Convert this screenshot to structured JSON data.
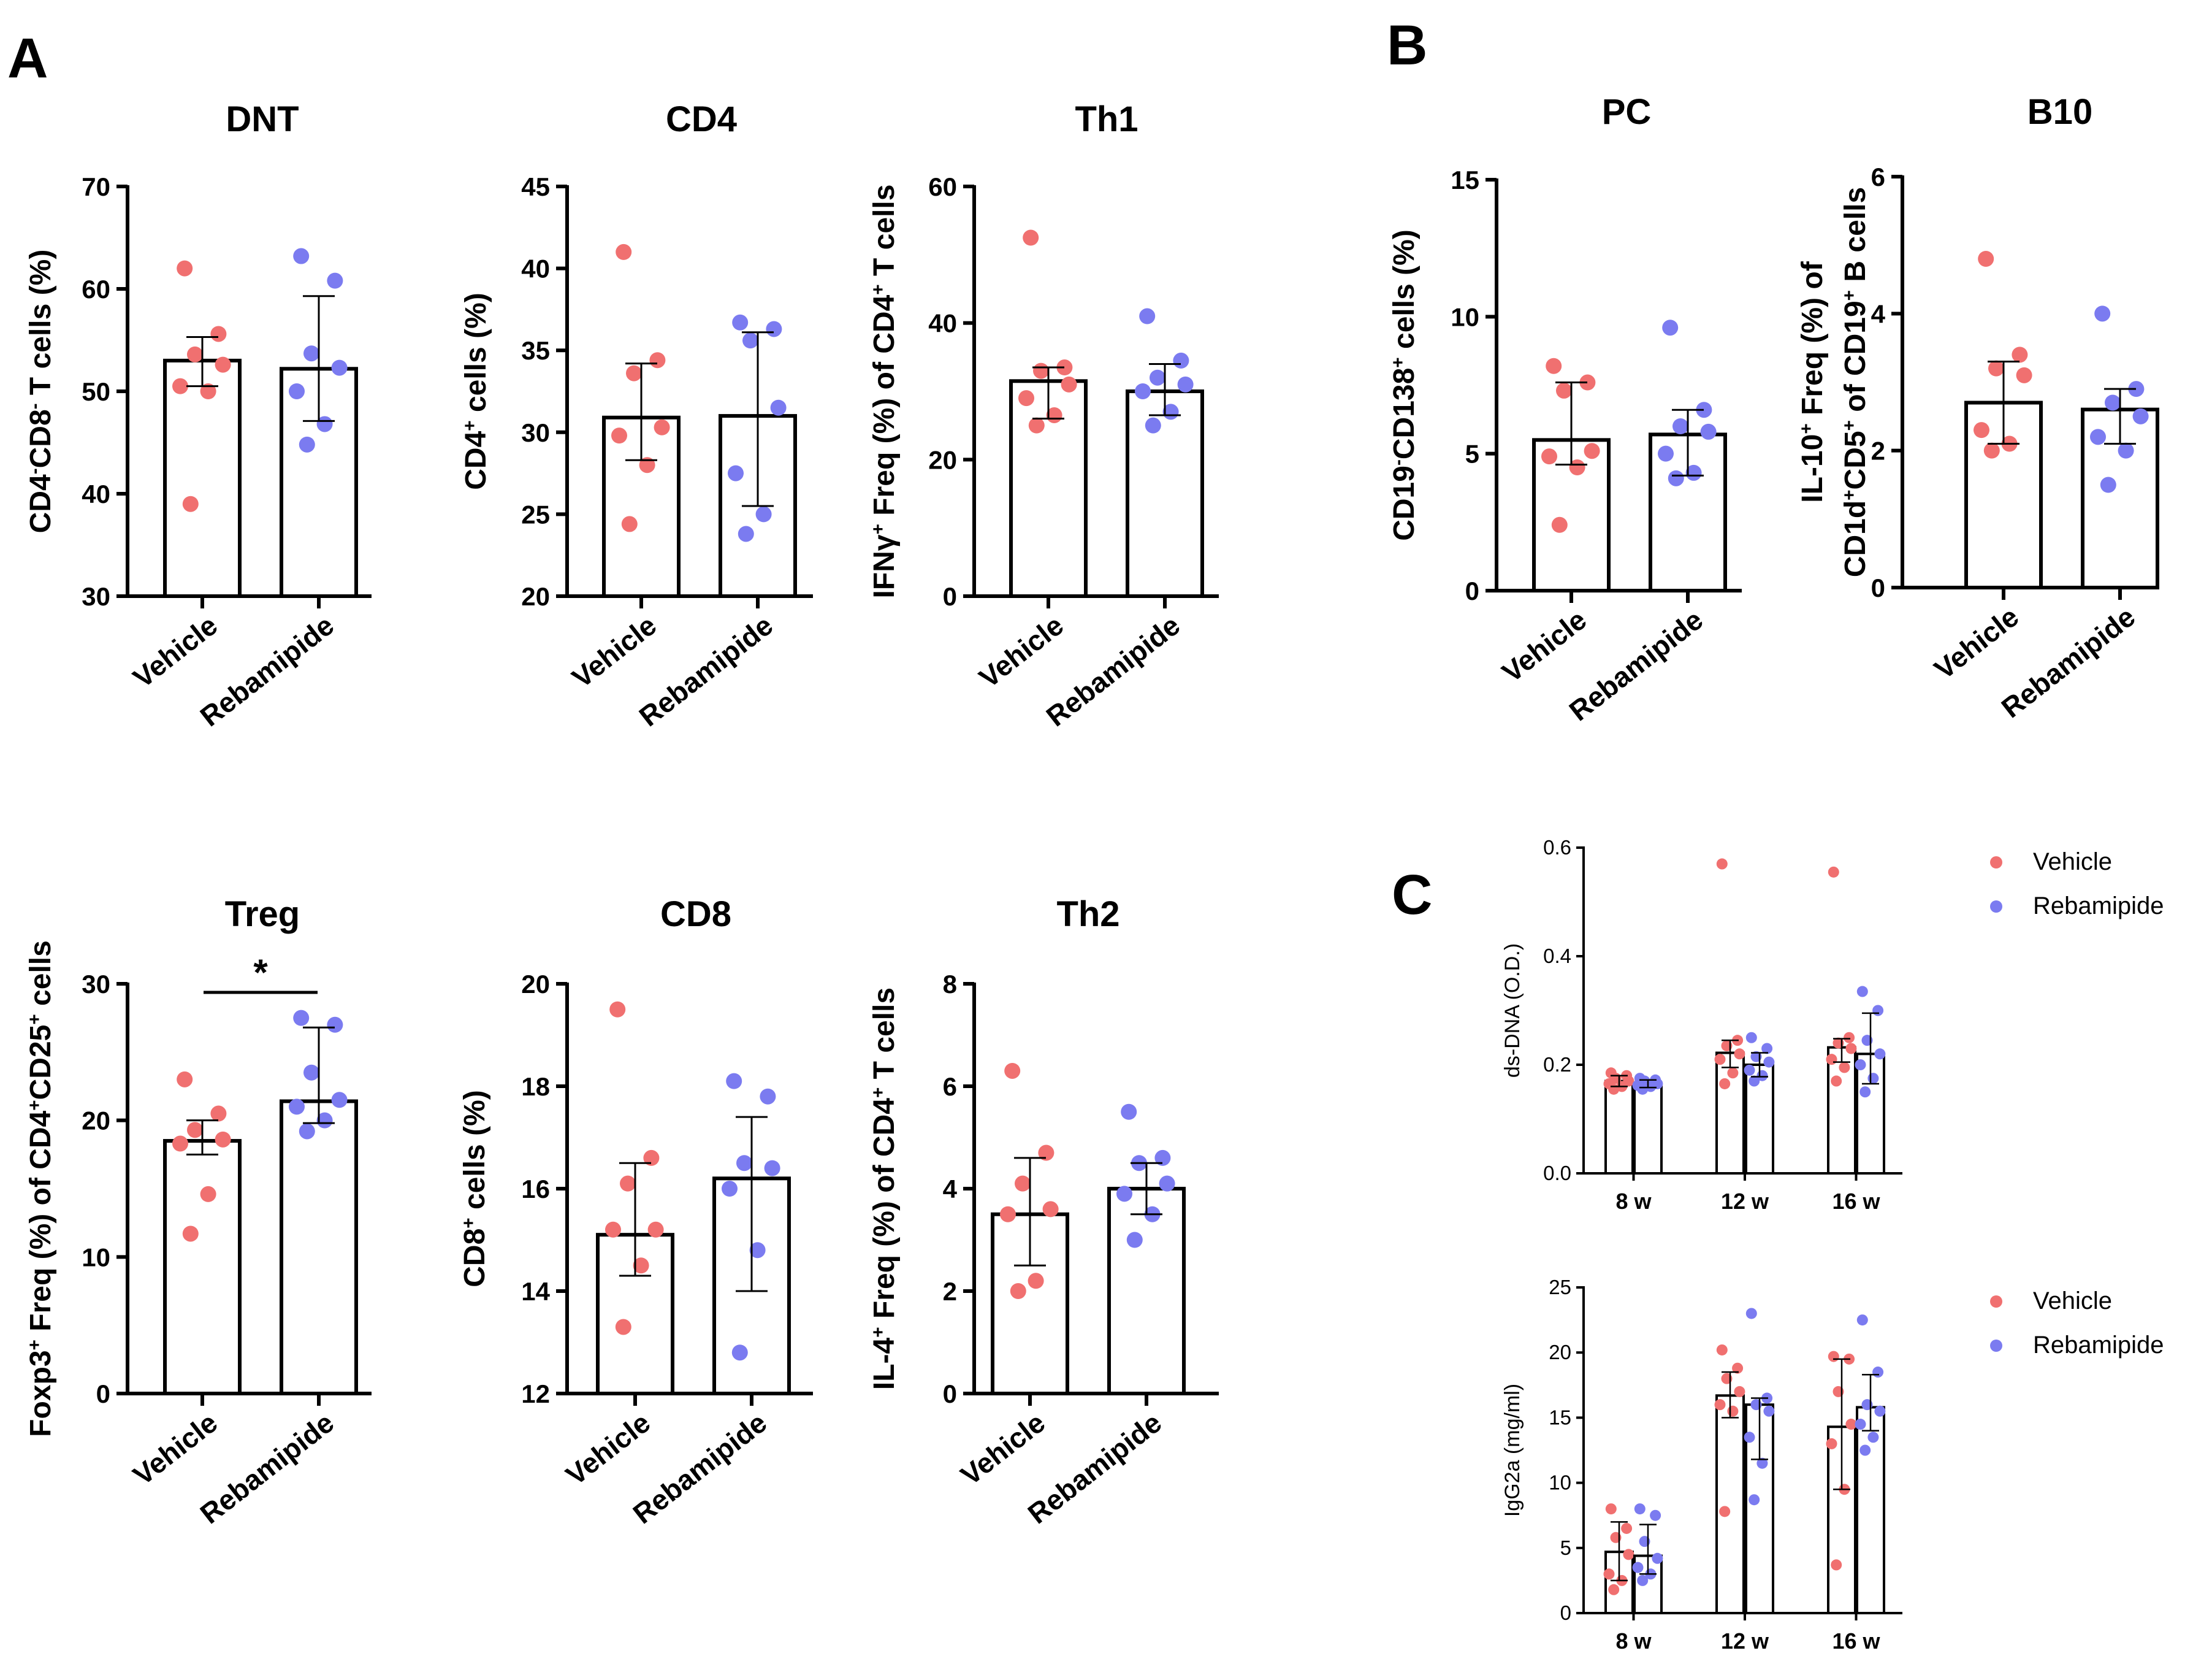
{
  "colors": {
    "vehicle": "#f07070",
    "rebamipide": "#7b7bf0",
    "axis": "#000000"
  },
  "panels": {
    "A": "A",
    "B": "B",
    "C": "C"
  },
  "chart_data": [
    {
      "id": "dnt",
      "panel": "A",
      "type": "bar",
      "title": "DNT",
      "ylabel": [
        {
          "t": "CD4"
        },
        {
          "t": "-",
          "s": "sup"
        },
        {
          "t": "CD8"
        },
        {
          "t": "-",
          "s": "sup"
        },
        {
          "t": " T cells (%)"
        }
      ],
      "ylim": [
        30,
        70
      ],
      "yticks": [
        30,
        40,
        50,
        60,
        70
      ],
      "categories": [
        "Vehicle",
        "Rebamipide"
      ],
      "series": [
        {
          "name": "Vehicle",
          "color": "vehicle",
          "mean": 53.0,
          "sd_low": 50.5,
          "sd_high": 55.3,
          "points": [
            62,
            55.6,
            53.6,
            52.6,
            50.5,
            50.0,
            39
          ]
        },
        {
          "name": "Rebamipide",
          "color": "rebamipide",
          "mean": 52.2,
          "sd_low": 47.1,
          "sd_high": 59.3,
          "points": [
            63.2,
            60.8,
            53.7,
            52.3,
            50.0,
            46.8,
            44.8
          ]
        }
      ]
    },
    {
      "id": "cd4",
      "panel": "A",
      "type": "bar",
      "title": "CD4",
      "ylabel": [
        {
          "t": "CD4"
        },
        {
          "t": "+",
          "s": "sup"
        },
        {
          "t": " cells (%)"
        }
      ],
      "ylim": [
        20,
        45
      ],
      "yticks": [
        20,
        25,
        30,
        35,
        40,
        45
      ],
      "categories": [
        "Vehicle",
        "Rebamipide"
      ],
      "series": [
        {
          "name": "Vehicle",
          "color": "vehicle",
          "mean": 30.9,
          "sd_low": 28.3,
          "sd_high": 34.2,
          "points": [
            41.0,
            34.4,
            33.6,
            30.3,
            29.8,
            28.0,
            24.4
          ]
        },
        {
          "name": "Rebamipide",
          "color": "rebamipide",
          "mean": 31.0,
          "sd_low": 25.5,
          "sd_high": 36.1,
          "points": [
            36.7,
            36.3,
            35.6,
            31.5,
            27.5,
            25.0,
            23.8
          ]
        }
      ]
    },
    {
      "id": "th1",
      "panel": "A",
      "type": "bar",
      "title": "Th1",
      "ylabel": [
        {
          "t": "IFNγ"
        },
        {
          "t": "+",
          "s": "sup"
        },
        {
          "t": " Freq (%) of CD4"
        },
        {
          "t": "+",
          "s": "sup"
        },
        {
          "t": " T cells"
        }
      ],
      "ylim": [
        0,
        60
      ],
      "yticks": [
        0,
        20,
        40,
        60
      ],
      "categories": [
        "Vehicle",
        "Rebamipide"
      ],
      "series": [
        {
          "name": "Vehicle",
          "color": "vehicle",
          "mean": 31.5,
          "sd_low": 26.0,
          "sd_high": 33.5,
          "points": [
            52.5,
            33.5,
            33.0,
            31.0,
            29.0,
            26.5,
            25.0
          ]
        },
        {
          "name": "Rebamipide",
          "color": "rebamipide",
          "mean": 30.0,
          "sd_low": 26.5,
          "sd_high": 34.0,
          "points": [
            41.0,
            34.5,
            32.0,
            31.0,
            30.0,
            27.0,
            25.0
          ]
        }
      ]
    },
    {
      "id": "treg",
      "panel": "A",
      "type": "bar",
      "title": "Treg",
      "ylabel": [
        {
          "t": "Foxp3"
        },
        {
          "t": "+",
          "s": "sup"
        },
        {
          "t": " Freq (%) of CD4"
        },
        {
          "t": "+",
          "s": "sup"
        },
        {
          "t": "CD25"
        },
        {
          "t": "+",
          "s": "sup"
        },
        {
          "t": " cells"
        }
      ],
      "ylim": [
        0,
        30
      ],
      "yticks": [
        0,
        10,
        20,
        30
      ],
      "categories": [
        "Vehicle",
        "Rebamipide"
      ],
      "significance": "*",
      "series": [
        {
          "name": "Vehicle",
          "color": "vehicle",
          "mean": 18.5,
          "sd_low": 17.5,
          "sd_high": 20.0,
          "points": [
            23.0,
            20.5,
            19.3,
            18.6,
            18.3,
            14.6,
            11.7
          ]
        },
        {
          "name": "Rebamipide",
          "color": "rebamipide",
          "mean": 21.4,
          "sd_low": 19.8,
          "sd_high": 26.8,
          "points": [
            27.5,
            27.0,
            23.5,
            21.5,
            21.0,
            20.0,
            19.2
          ]
        }
      ]
    },
    {
      "id": "cd8",
      "panel": "A",
      "type": "bar",
      "title": "CD8",
      "ylabel": [
        {
          "t": "CD8"
        },
        {
          "t": "+",
          "s": "sup"
        },
        {
          "t": " cells (%)"
        }
      ],
      "ylim": [
        12,
        20
      ],
      "yticks": [
        12,
        14,
        16,
        18,
        20
      ],
      "categories": [
        "Vehicle",
        "Rebamipide"
      ],
      "series": [
        {
          "name": "Vehicle",
          "color": "vehicle",
          "mean": 15.1,
          "sd_low": 14.3,
          "sd_high": 16.5,
          "points": [
            19.5,
            16.6,
            16.1,
            15.2,
            15.2,
            14.5,
            13.3
          ]
        },
        {
          "name": "Rebamipide",
          "color": "rebamipide",
          "mean": 16.2,
          "sd_low": 14.0,
          "sd_high": 17.4,
          "points": [
            18.1,
            17.8,
            16.5,
            16.4,
            16.0,
            14.8,
            12.8
          ]
        }
      ]
    },
    {
      "id": "th2",
      "panel": "A",
      "type": "bar",
      "title": "Th2",
      "ylabel": [
        {
          "t": "IL-4"
        },
        {
          "t": "+",
          "s": "sup"
        },
        {
          "t": " Freq (%) of CD4"
        },
        {
          "t": "+",
          "s": "sup"
        },
        {
          "t": " T cells"
        }
      ],
      "ylim": [
        0,
        8
      ],
      "yticks": [
        0,
        2,
        4,
        6,
        8
      ],
      "categories": [
        "Vehicle",
        "Rebamipide"
      ],
      "series": [
        {
          "name": "Vehicle",
          "color": "vehicle",
          "mean": 3.5,
          "sd_low": 2.5,
          "sd_high": 4.6,
          "points": [
            6.3,
            4.7,
            4.1,
            3.6,
            3.5,
            2.2,
            2.0
          ]
        },
        {
          "name": "Rebamipide",
          "color": "rebamipide",
          "mean": 4.0,
          "sd_low": 3.5,
          "sd_high": 4.5,
          "points": [
            5.5,
            4.6,
            4.5,
            4.1,
            3.9,
            3.5,
            3.0
          ]
        }
      ]
    },
    {
      "id": "pc",
      "panel": "B",
      "type": "bar",
      "title": "PC",
      "ylabel": [
        {
          "t": "CD19"
        },
        {
          "t": "-",
          "s": "sup"
        },
        {
          "t": "CD138"
        },
        {
          "t": "+",
          "s": "sup"
        },
        {
          "t": " cells (%)"
        }
      ],
      "ylim": [
        0,
        15
      ],
      "yticks": [
        0,
        5,
        10,
        15
      ],
      "categories": [
        "Vehicle",
        "Rebamipide"
      ],
      "series": [
        {
          "name": "Vehicle",
          "color": "vehicle",
          "mean": 5.5,
          "sd_low": 4.6,
          "sd_high": 7.6,
          "points": [
            8.2,
            7.6,
            7.3,
            5.1,
            4.9,
            4.5,
            2.4
          ]
        },
        {
          "name": "Rebamipide",
          "color": "rebamipide",
          "mean": 5.7,
          "sd_low": 4.2,
          "sd_high": 6.6,
          "points": [
            9.6,
            6.6,
            6.0,
            5.8,
            5.0,
            4.3,
            4.1
          ]
        }
      ]
    },
    {
      "id": "b10",
      "panel": "B",
      "type": "bar",
      "title": "B10",
      "ylabel_lines": [
        [
          {
            "t": "IL-10"
          },
          {
            "t": "+",
            "s": "sup"
          },
          {
            "t": " Freq (%) of"
          }
        ],
        [
          {
            "t": "CD1d"
          },
          {
            "t": "+",
            "s": "sup"
          },
          {
            "t": "CD5"
          },
          {
            "t": "+",
            "s": "sup"
          },
          {
            "t": " of CD19"
          },
          {
            "t": "+",
            "s": "sup"
          },
          {
            "t": " B cells"
          }
        ]
      ],
      "ylim": [
        0,
        6
      ],
      "yticks": [
        0,
        2,
        4,
        6
      ],
      "categories": [
        "Vehicle",
        "Rebamipide"
      ],
      "series": [
        {
          "name": "Vehicle",
          "color": "vehicle",
          "mean": 2.7,
          "sd_low": 2.1,
          "sd_high": 3.3,
          "points": [
            4.8,
            3.4,
            3.2,
            3.1,
            2.3,
            2.1,
            2.0
          ]
        },
        {
          "name": "Rebamipide",
          "color": "rebamipide",
          "mean": 2.6,
          "sd_low": 2.1,
          "sd_high": 2.9,
          "points": [
            4.0,
            2.9,
            2.7,
            2.5,
            2.2,
            2.0,
            1.5
          ]
        }
      ]
    },
    {
      "id": "dsdna",
      "panel": "C",
      "type": "bar",
      "title": "",
      "ylabel": [
        {
          "t": "ds-DNA (O.D.)"
        }
      ],
      "ylim": [
        0,
        0.6
      ],
      "yticks": [
        "0.0",
        "0.2",
        "0.4",
        "0.6"
      ],
      "categories": [
        "8 w",
        "12 w",
        "16 w"
      ],
      "legend": [
        "Vehicle",
        "Rebamipide"
      ],
      "series": [
        {
          "name": "Vehicle",
          "color": "vehicle",
          "means": [
            0.17,
            0.222,
            0.232
          ],
          "sd_low": [
            0.16,
            0.195,
            0.205
          ],
          "sd_high": [
            0.18,
            0.245,
            0.248
          ],
          "points": [
            [
              0.185,
              0.18,
              0.175,
              0.17,
              0.165,
              0.16,
              0.155
            ],
            [
              0.57,
              0.245,
              0.235,
              0.22,
              0.21,
              0.185,
              0.165
            ],
            [
              0.555,
              0.25,
              0.24,
              0.23,
              0.21,
              0.195,
              0.17
            ]
          ]
        },
        {
          "name": "Rebamipide",
          "color": "rebamipide",
          "means": [
            0.165,
            0.2,
            0.22
          ],
          "sd_low": [
            0.158,
            0.178,
            0.165
          ],
          "sd_high": [
            0.172,
            0.222,
            0.295
          ],
          "points": [
            [
              0.175,
              0.172,
              0.17,
              0.165,
              0.162,
              0.16,
              0.155
            ],
            [
              0.25,
              0.23,
              0.215,
              0.205,
              0.19,
              0.18,
              0.17
            ],
            [
              0.335,
              0.3,
              0.245,
              0.22,
              0.2,
              0.175,
              0.15
            ]
          ]
        }
      ]
    },
    {
      "id": "igg2a",
      "panel": "C",
      "type": "bar",
      "title": "",
      "ylabel": [
        {
          "t": "IgG2a (mg/ml)"
        }
      ],
      "ylim": [
        0,
        25
      ],
      "yticks": [
        "0",
        "5",
        "10",
        "15",
        "20",
        "25"
      ],
      "categories": [
        "8 w",
        "12 w",
        "16 w"
      ],
      "legend": [
        "Vehicle",
        "Rebamipide"
      ],
      "series": [
        {
          "name": "Vehicle",
          "color": "vehicle",
          "means": [
            4.7,
            16.7,
            14.3
          ],
          "sd_low": [
            2.5,
            15.0,
            9.5
          ],
          "sd_high": [
            7.0,
            18.5,
            19.5
          ],
          "points": [
            [
              8.0,
              6.5,
              5.8,
              4.5,
              3.0,
              2.5,
              1.8
            ],
            [
              20.2,
              18.8,
              18.0,
              17.0,
              16.0,
              15.5,
              7.8
            ],
            [
              19.7,
              19.5,
              17.0,
              14.5,
              13.0,
              9.5,
              3.7
            ]
          ]
        },
        {
          "name": "Rebamipide",
          "color": "rebamipide",
          "means": [
            4.4,
            16.0,
            15.8
          ],
          "sd_low": [
            3.0,
            11.8,
            14.0
          ],
          "sd_high": [
            6.8,
            16.5,
            18.3
          ],
          "points": [
            [
              8.0,
              7.5,
              5.5,
              4.2,
              3.5,
              3.0,
              2.5
            ],
            [
              23.0,
              16.5,
              16.0,
              15.5,
              13.5,
              11.5,
              8.7
            ],
            [
              22.5,
              18.5,
              16.0,
              15.5,
              14.5,
              13.5,
              12.5
            ]
          ]
        }
      ]
    }
  ]
}
